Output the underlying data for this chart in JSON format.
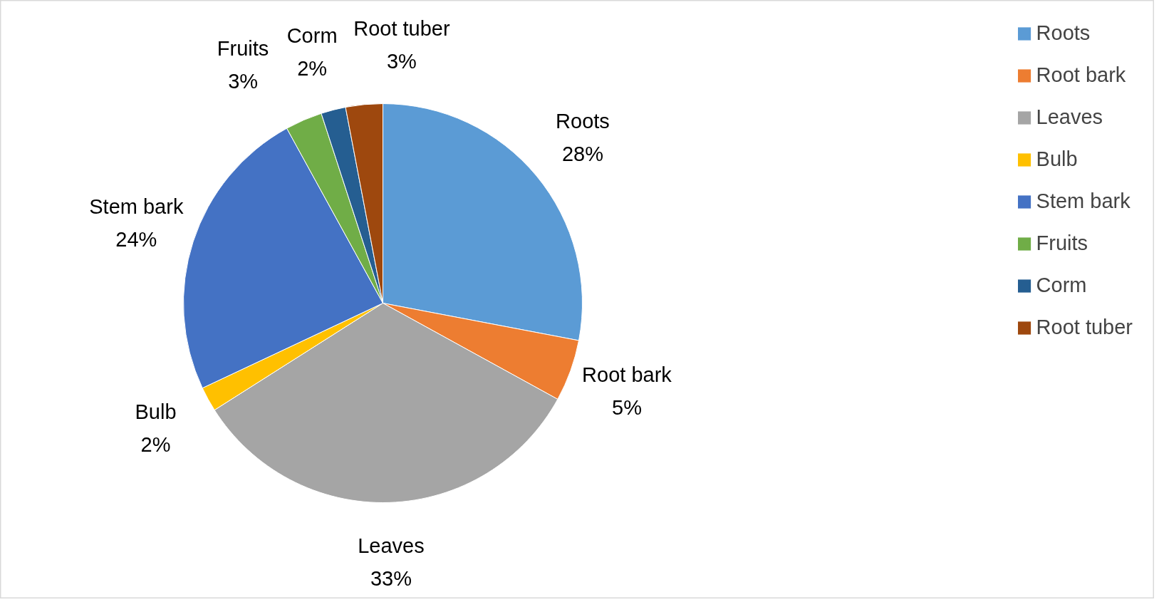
{
  "chart_data": {
    "type": "pie",
    "categories": [
      "Roots",
      "Root bark",
      "Leaves",
      "Bulb",
      "Stem bark",
      "Fruits",
      "Corm",
      "Root tuber"
    ],
    "values": [
      28,
      5,
      33,
      2,
      24,
      3,
      2,
      3
    ],
    "value_labels": [
      "28%",
      "5%",
      "33%",
      "2%",
      "24%",
      "3%",
      "2%",
      "3%"
    ],
    "colors": [
      "#5b9bd5",
      "#ed7d31",
      "#a5a5a5",
      "#ffc000",
      "#4472c4",
      "#70ad47",
      "#255e91",
      "#9e480e"
    ],
    "legend": "top right"
  }
}
